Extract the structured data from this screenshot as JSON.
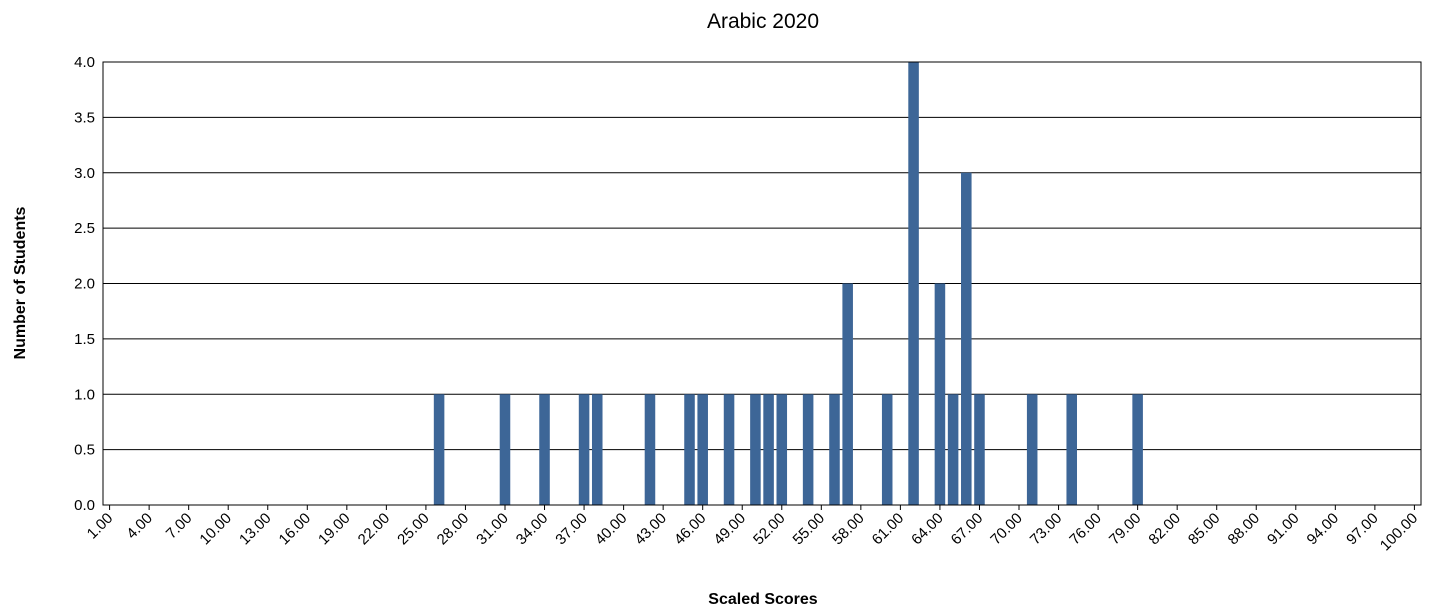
{
  "chart_data": {
    "type": "bar",
    "title": "Arabic 2020",
    "xlabel": "Scaled Scores",
    "ylabel": "Number of Students",
    "ylim": [
      0,
      4
    ],
    "yticks": [
      "0.0",
      "0.5",
      "1.0",
      "1.5",
      "2.0",
      "2.5",
      "3.0",
      "3.5",
      "4.0"
    ],
    "grid": true,
    "legend": "none",
    "bar_color": "#3d6697",
    "x_range": [
      1,
      100
    ],
    "xtick_labels": [
      "1.00",
      "4.00",
      "7.00",
      "10.00",
      "13.00",
      "16.00",
      "19.00",
      "22.00",
      "25.00",
      "28.00",
      "31.00",
      "34.00",
      "37.00",
      "40.00",
      "43.00",
      "46.00",
      "49.00",
      "52.00",
      "55.00",
      "58.00",
      "61.00",
      "64.00",
      "67.00",
      "70.00",
      "73.00",
      "76.00",
      "79.00",
      "82.00",
      "85.00",
      "88.00",
      "91.00",
      "94.00",
      "97.00",
      "100.00"
    ],
    "points": [
      {
        "x": 26,
        "y": 1
      },
      {
        "x": 31,
        "y": 1
      },
      {
        "x": 34,
        "y": 1
      },
      {
        "x": 37,
        "y": 1
      },
      {
        "x": 38,
        "y": 1
      },
      {
        "x": 42,
        "y": 1
      },
      {
        "x": 45,
        "y": 1
      },
      {
        "x": 46,
        "y": 1
      },
      {
        "x": 48,
        "y": 1
      },
      {
        "x": 50,
        "y": 1
      },
      {
        "x": 51,
        "y": 1
      },
      {
        "x": 52,
        "y": 1
      },
      {
        "x": 54,
        "y": 1
      },
      {
        "x": 56,
        "y": 1
      },
      {
        "x": 57,
        "y": 2
      },
      {
        "x": 60,
        "y": 1
      },
      {
        "x": 62,
        "y": 4
      },
      {
        "x": 64,
        "y": 2
      },
      {
        "x": 65,
        "y": 1
      },
      {
        "x": 66,
        "y": 3
      },
      {
        "x": 67,
        "y": 1
      },
      {
        "x": 71,
        "y": 1
      },
      {
        "x": 74,
        "y": 1
      },
      {
        "x": 79,
        "y": 1
      }
    ]
  }
}
